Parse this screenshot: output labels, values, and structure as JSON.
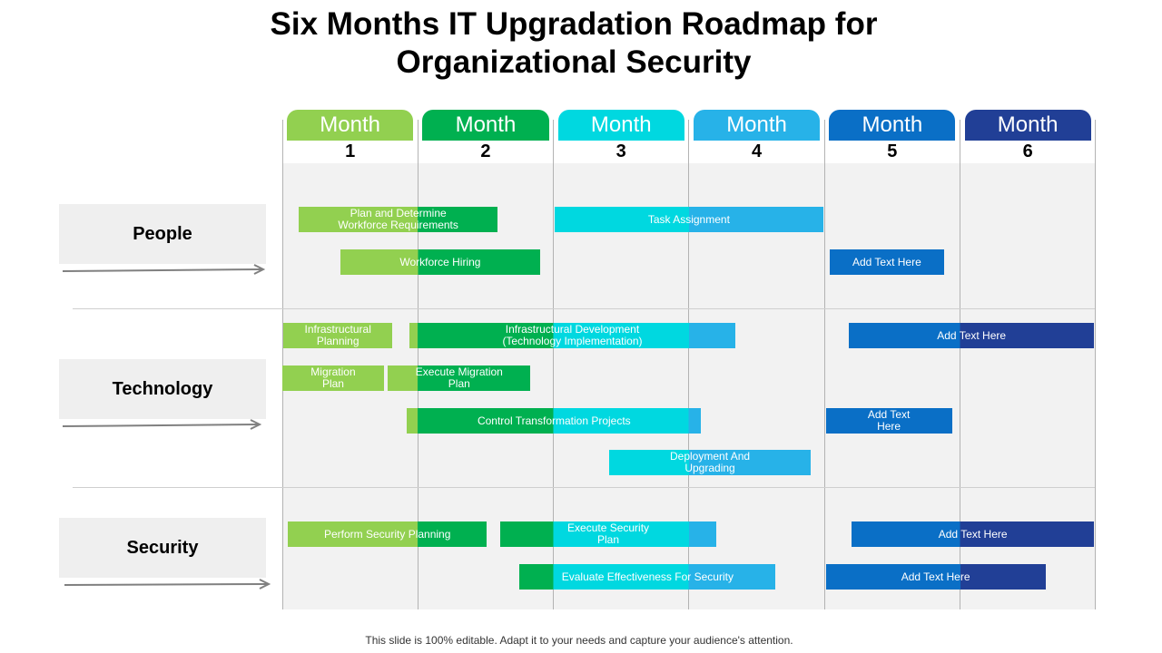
{
  "title_line1": "Six Months IT Upgradation Roadmap for",
  "title_line2": "Organizational Security",
  "months": [
    {
      "label": "Month",
      "number": "1",
      "color": "#92d050"
    },
    {
      "label": "Month",
      "number": "2",
      "color": "#00b050"
    },
    {
      "label": "Month",
      "number": "3",
      "color": "#00d8e0"
    },
    {
      "label": "Month",
      "number": "4",
      "color": "#27b2e8"
    },
    {
      "label": "Month",
      "number": "5",
      "color": "#0a6fc6"
    },
    {
      "label": "Month",
      "number": "6",
      "color": "#213f96"
    }
  ],
  "rows": [
    {
      "label": "People"
    },
    {
      "label": "Technology"
    },
    {
      "label": "Security"
    }
  ],
  "tasks": [
    {
      "label": "Plan and Determine\nWorkforce Requirements",
      "row": "People",
      "start_month": 1.12,
      "end_month": 2.59
    },
    {
      "label": "Task Assignment",
      "row": "People",
      "start_month": 3.01,
      "end_month": 4.99
    },
    {
      "label": "Workforce Hiring",
      "row": "People",
      "start_month": 1.43,
      "end_month": 2.9
    },
    {
      "label": "Add Text Here",
      "row": "People",
      "start_month": 5.04,
      "end_month": 5.88
    },
    {
      "label": "Infrastructural\nPlanning",
      "row": "Technology",
      "start_month": 1.01,
      "end_month": 1.81
    },
    {
      "label": "Infrastructural Development\n(Technology Implementation)",
      "row": "Technology",
      "start_month": 1.94,
      "end_month": 4.34
    },
    {
      "label": "Add Text Here",
      "row": "Technology",
      "start_month": 5.18,
      "end_month": 6.99
    },
    {
      "label": "Migration\nPlan",
      "row": "Technology",
      "start_month": 1.0,
      "end_month": 1.75
    },
    {
      "label": "Execute Migration\nPlan",
      "row": "Technology",
      "start_month": 1.78,
      "end_month": 2.83
    },
    {
      "label": "Control Transformation Projects",
      "row": "Technology",
      "start_month": 1.92,
      "end_month": 4.09
    },
    {
      "label": "Add Text\nHere",
      "row": "Technology",
      "start_month": 5.01,
      "end_month": 5.94
    },
    {
      "label": "Deployment And\nUpgrading",
      "row": "Technology",
      "start_month": 3.41,
      "end_month": 4.9
    },
    {
      "label": "Perform Security Planning",
      "row": "Security",
      "start_month": 1.04,
      "end_month": 2.51
    },
    {
      "label": "Execute Security\nPlan",
      "row": "Security",
      "start_month": 2.61,
      "end_month": 4.2
    },
    {
      "label": "Add Text Here",
      "row": "Security",
      "start_month": 5.2,
      "end_month": 6.99
    },
    {
      "label": "Evaluate Effectiveness For Security",
      "row": "Security",
      "start_month": 2.75,
      "end_month": 4.64
    },
    {
      "label": "Add Text Here",
      "row": "Security",
      "start_month": 5.01,
      "end_month": 6.63
    }
  ],
  "footer": "This slide is 100% editable. Adapt it to your needs and capture your audience's attention."
}
